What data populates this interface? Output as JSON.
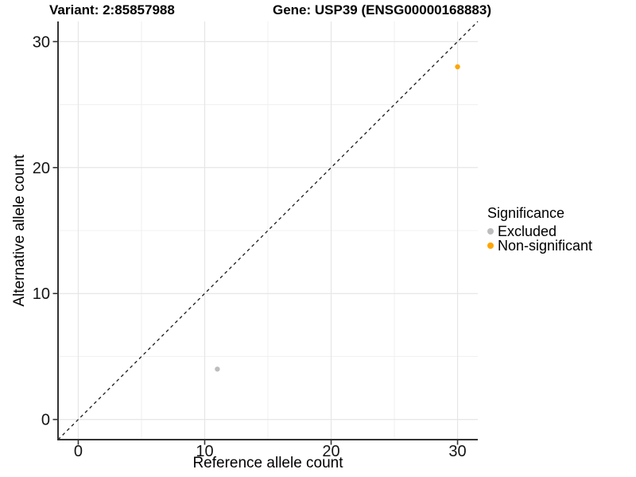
{
  "chart_data": {
    "type": "scatter",
    "titles": {
      "variant": "Variant: 2:85857988",
      "gene": "Gene: USP39 (ENSG00000168883)"
    },
    "xlabel": "Reference allele count",
    "ylabel": "Alternative allele count",
    "xlim": [
      -1.6,
      31.6
    ],
    "ylim": [
      -1.6,
      31.6
    ],
    "x_ticks": [
      0,
      10,
      20,
      30
    ],
    "y_ticks": [
      0,
      10,
      20,
      30
    ],
    "x_minor_ticks": [
      5,
      15,
      25
    ],
    "y_minor_ticks": [
      5,
      15,
      25
    ],
    "grid": true,
    "legend": {
      "title": "Significance",
      "position": "right"
    },
    "reference_line": {
      "type": "identity",
      "style": "dashed",
      "color": "#1a1a1a"
    },
    "series": [
      {
        "name": "Excluded",
        "color": "#bdbdbd",
        "points": [
          {
            "x": 11,
            "y": 4
          }
        ]
      },
      {
        "name": "Non-significant",
        "color": "#ffa500",
        "points": [
          {
            "x": 30,
            "y": 28
          }
        ]
      }
    ]
  }
}
